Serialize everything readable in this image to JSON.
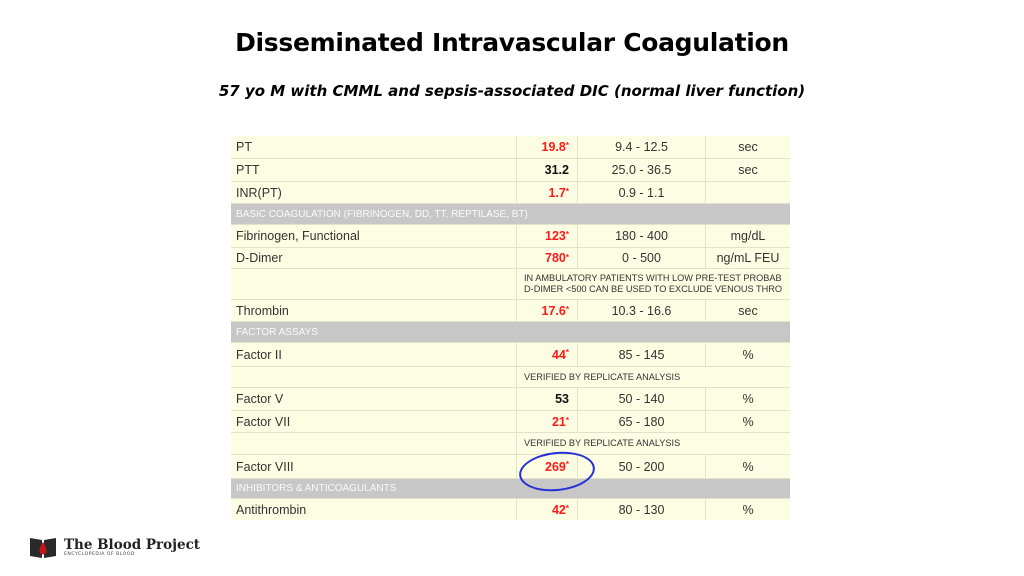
{
  "title": "Disseminated Intravascular Coagulation",
  "subtitle": "57 yo M with CMML and sepsis-associated DIC (normal liver function)",
  "lab": {
    "pt": {
      "name": "PT",
      "value": "19.8",
      "flag": "*",
      "range": "9.4 - 12.5",
      "unit": "sec"
    },
    "ptt": {
      "name": "PTT",
      "value": "31.2",
      "flag": "",
      "range": "25.0 - 36.5",
      "unit": "sec"
    },
    "inr": {
      "name": "INR(PT)",
      "value": "1.7",
      "flag": "*",
      "range": "0.9 - 1.1",
      "unit": ""
    },
    "sec_basic": "BASIC COAGULATION (FIBRINOGEN, DD, TT, REPTILASE, BT)",
    "fib": {
      "name": "Fibrinogen, Functional",
      "value": "123",
      "flag": "*",
      "range": "180 - 400",
      "unit": "mg/dL"
    },
    "ddimer": {
      "name": "D-Dimer",
      "value": "780",
      "flag": "*",
      "range": "0 - 500",
      "unit": "ng/mL FEU"
    },
    "ddimer_note": {
      "line1": "IN AMBULATORY PATIENTS WITH LOW PRE-TEST PROBAB",
      "line2": "D-DIMER <500 CAN BE USED TO EXCLUDE VENOUS THRO"
    },
    "thrombin": {
      "name": "Thrombin",
      "value": "17.6",
      "flag": "*",
      "range": "10.3 - 16.6",
      "unit": "sec"
    },
    "sec_factor": "FACTOR ASSAYS",
    "f2": {
      "name": "Factor II",
      "value": "44",
      "flag": "*",
      "range": "85 - 145",
      "unit": "%"
    },
    "f2_note": "VERIFIED BY REPLICATE ANALYSIS",
    "f5": {
      "name": "Factor V",
      "value": "53",
      "flag": "",
      "range": "50 - 140",
      "unit": "%"
    },
    "f7": {
      "name": "Factor VII",
      "value": "21",
      "flag": "*",
      "range": "65 - 180",
      "unit": "%"
    },
    "f7_note": "VERIFIED BY REPLICATE ANALYSIS",
    "f8": {
      "name": "Factor VIII",
      "value": "269",
      "flag": "*",
      "range": "50 - 200",
      "unit": "%"
    },
    "sec_inhib": "INHIBITORS & ANTICOAGULANTS",
    "at": {
      "name": "Antithrombin",
      "value": "42",
      "flag": "*",
      "range": "80 - 130",
      "unit": "%"
    }
  },
  "logo": {
    "name": "The Blood Project",
    "tagline": "ENCYCLOPEDIA OF BLOOD"
  },
  "colors": {
    "flag": "#ff1a1a",
    "section": "#c7c7c7",
    "table_bg": "#fdfde3",
    "circle": "#2430d6",
    "logo_drop": "#c4161c"
  }
}
